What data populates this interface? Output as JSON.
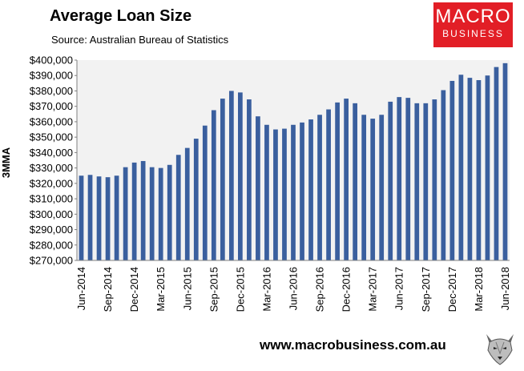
{
  "header": {
    "title": "Average Loan Size",
    "subtitle": "Source: Australian Bureau of Statistics"
  },
  "logo": {
    "line1": "MACRO",
    "line2": "BUSINESS"
  },
  "footer": {
    "website": "www.macrobusiness.com.au",
    "mascot_icon": "wolf-logo-icon"
  },
  "colors": {
    "bar": "#3a5f9e",
    "plot_bg": "#f2f2f2",
    "logo_red": "#e21e26"
  },
  "chart_data": {
    "type": "bar",
    "title": "Average Loan Size",
    "ylabel": "3MMA",
    "xlabel": "",
    "ylim": [
      270000,
      400000
    ],
    "y_ticks": [
      "$270,000",
      "$280,000",
      "$290,000",
      "$300,000",
      "$310,000",
      "$320,000",
      "$330,000",
      "$340,000",
      "$350,000",
      "$360,000",
      "$370,000",
      "$380,000",
      "$390,000",
      "$400,000"
    ],
    "x_tick_labels": [
      "Jun-2014",
      "Sep-2014",
      "Dec-2014",
      "Mar-2015",
      "Jun-2015",
      "Sep-2015",
      "Dec-2015",
      "Mar-2016",
      "Jun-2016",
      "Sep-2016",
      "Dec-2016",
      "Mar-2017",
      "Jun-2017",
      "Sep-2017",
      "Dec-2017",
      "Mar-2018",
      "Jun-2018"
    ],
    "categories": [
      "Jun-2014",
      "Jul-2014",
      "Aug-2014",
      "Sep-2014",
      "Oct-2014",
      "Nov-2014",
      "Dec-2014",
      "Jan-2015",
      "Feb-2015",
      "Mar-2015",
      "Apr-2015",
      "May-2015",
      "Jun-2015",
      "Jul-2015",
      "Aug-2015",
      "Sep-2015",
      "Oct-2015",
      "Nov-2015",
      "Dec-2015",
      "Jan-2016",
      "Feb-2016",
      "Mar-2016",
      "Apr-2016",
      "May-2016",
      "Jun-2016",
      "Jul-2016",
      "Aug-2016",
      "Sep-2016",
      "Oct-2016",
      "Nov-2016",
      "Dec-2016",
      "Jan-2017",
      "Feb-2017",
      "Mar-2017",
      "Apr-2017",
      "May-2017",
      "Jun-2017",
      "Jul-2017",
      "Aug-2017",
      "Sep-2017",
      "Oct-2017",
      "Nov-2017",
      "Dec-2017",
      "Jan-2018",
      "Feb-2018",
      "Mar-2018",
      "Apr-2018",
      "May-2018",
      "Jun-2018"
    ],
    "values": [
      325000,
      325500,
      324500,
      324000,
      325000,
      330500,
      333500,
      334500,
      330500,
      330000,
      332000,
      338500,
      343000,
      349000,
      357500,
      367500,
      375000,
      380000,
      379000,
      374500,
      363500,
      358000,
      355000,
      355500,
      358000,
      359500,
      361500,
      364500,
      368000,
      372500,
      375000,
      372000,
      364500,
      362000,
      364500,
      373000,
      376000,
      375500,
      372000,
      372000,
      374500,
      380500,
      386500,
      390500,
      388500,
      387000,
      390000,
      395500,
      398000
    ],
    "grid": false,
    "legend": "none"
  }
}
